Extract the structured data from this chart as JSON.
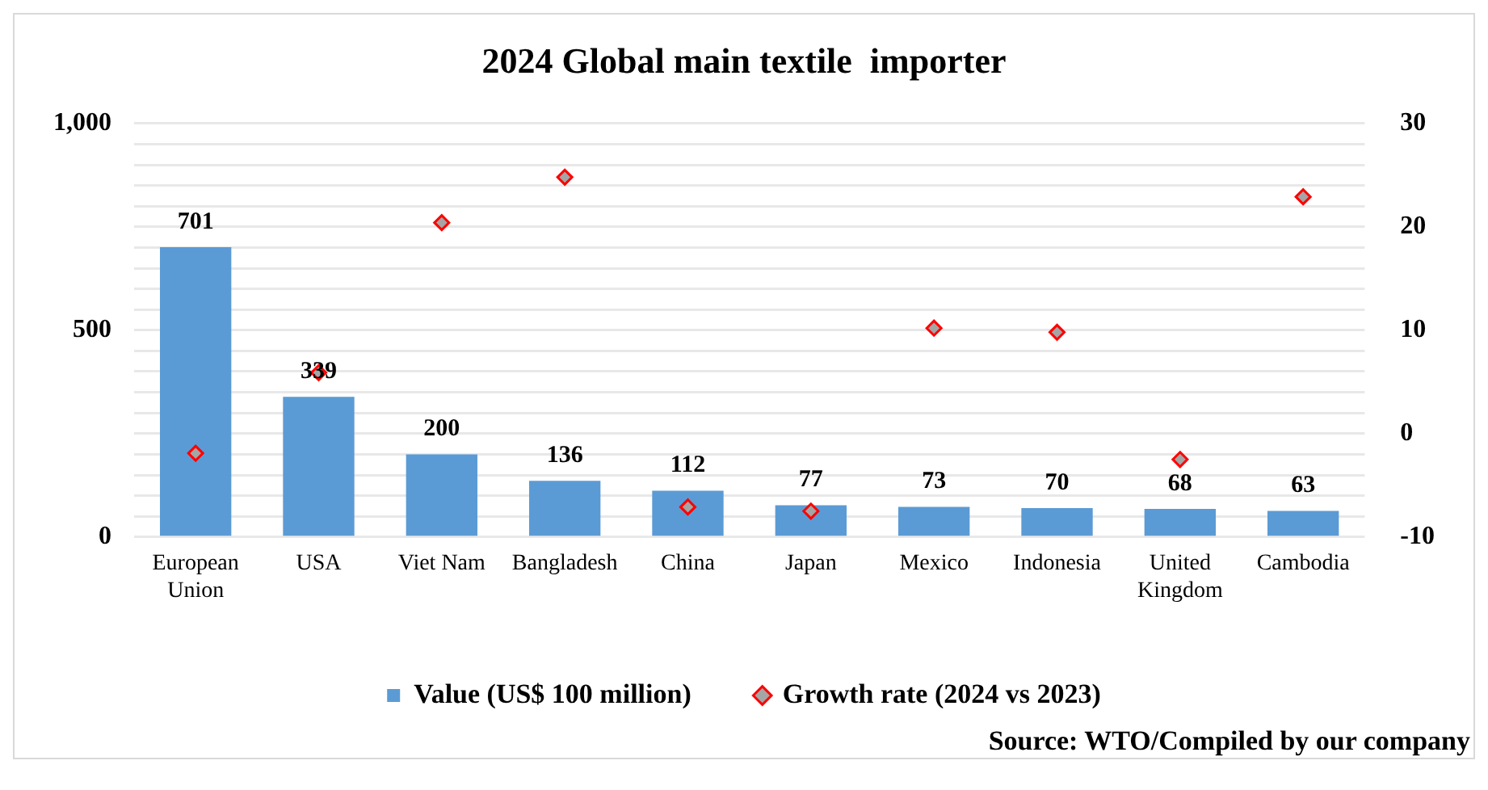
{
  "chart_data": {
    "type": "bar",
    "title": "2024 Global main textile  importer",
    "categories": [
      "European Union",
      "USA",
      "Viet Nam",
      "Bangladesh",
      "China",
      "Japan",
      "Mexico",
      "Indonesia",
      "United Kingdom",
      "Cambodia"
    ],
    "series": [
      {
        "name": "Value (US$ 100 million)",
        "color": "#5b9bd5",
        "values": [
          701,
          339,
          200,
          136,
          112,
          77,
          73,
          70,
          68,
          63
        ],
        "value_labels": [
          "701",
          "339",
          "200",
          "136",
          "112",
          "77",
          "73",
          "70",
          "68",
          "63"
        ]
      },
      {
        "name": "Growth rate (2024 vs 2023)",
        "type": "scatter",
        "axis": "y2",
        "color": "#ff0000",
        "x": [
          "European Union",
          "USA",
          "Viet Nam",
          "Bangladesh",
          "China",
          "Japan",
          "Mexico",
          "Indonesia",
          "United Kingdom",
          "Cambodia"
        ],
        "values": [
          -1.9,
          5.9,
          20.4,
          24.8,
          -7.1,
          -7.5,
          10.2,
          9.8,
          -2.5,
          22.9
        ]
      }
    ],
    "ylim": [
      0,
      1000
    ],
    "yticks": [
      0,
      {
        "value": 50,
        "label": null
      },
      {
        "value": 100,
        "label": null
      },
      {
        "value": 150,
        "label": null
      },
      {
        "value": 200,
        "label": null
      },
      {
        "value": 250,
        "label": null
      },
      {
        "value": 300,
        "label": null
      },
      {
        "value": 350,
        "label": null
      },
      {
        "value": 400,
        "label": null
      },
      {
        "value": 450,
        "label": null
      },
      500,
      {
        "value": 550,
        "label": null
      },
      {
        "value": 600,
        "label": null
      },
      {
        "value": 650,
        "label": null
      },
      {
        "value": 700,
        "label": null
      },
      {
        "value": 750,
        "label": null
      },
      {
        "value": 800,
        "label": null
      },
      {
        "value": 850,
        "label": null
      },
      {
        "value": 900,
        "label": null
      },
      {
        "value": 950,
        "label": null
      },
      {
        "value": 1000,
        "label": "1,000"
      }
    ],
    "y2lim": [
      -10,
      30
    ],
    "y2ticks": [
      -10,
      0,
      10,
      20,
      30
    ],
    "grid": "y",
    "legend": "bottom",
    "marker": "diamond",
    "annotations": [
      "Source: WTO/Compiled  by our company"
    ]
  }
}
